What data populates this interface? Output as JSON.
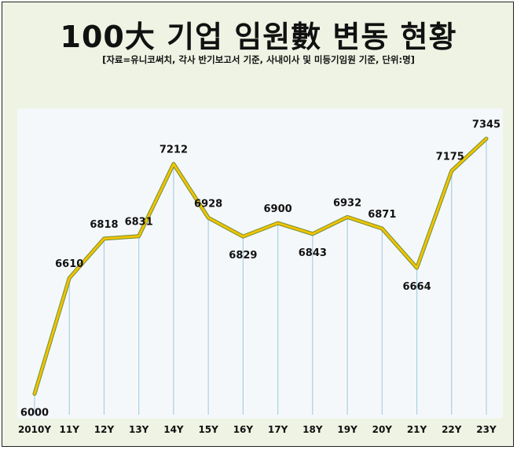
{
  "header": {
    "title": "100大 기업 임원數 변동 현황",
    "subtitle": "[자료=유니코써치, 각사 반기보고서 기준, 사내이사 및 미등기임원 기준, 단위:명]"
  },
  "colors": {
    "line": "#f2c200",
    "line_shadow": "#6f8f3a",
    "dropline": "#a9cfe4",
    "label": "#111111",
    "highlight": "#e02020",
    "frame_bg": "#eef3e3",
    "plot_bg": "#f5f8fa"
  },
  "chart_data": {
    "type": "line",
    "title": "100大 기업 임원數 변동 현황",
    "unit": "명",
    "categories": [
      "2010Y",
      "11Y",
      "12Y",
      "13Y",
      "14Y",
      "15Y",
      "16Y",
      "17Y",
      "18Y",
      "19Y",
      "20Y",
      "21Y",
      "22Y",
      "23Y"
    ],
    "values": [
      6000,
      6610,
      6818,
      6831,
      7212,
      6928,
      6829,
      6900,
      6843,
      6932,
      6871,
      6664,
      7175,
      7345
    ],
    "value_labels": [
      "6000",
      "6610",
      "6818",
      "6831",
      "7212",
      "6928",
      "6829",
      "6900",
      "6843",
      "6932",
      "6871",
      "6664",
      "7175",
      "7345"
    ],
    "highlight_index": 13,
    "ylim": [
      5890,
      7455
    ],
    "grid": false,
    "legend": "none"
  }
}
